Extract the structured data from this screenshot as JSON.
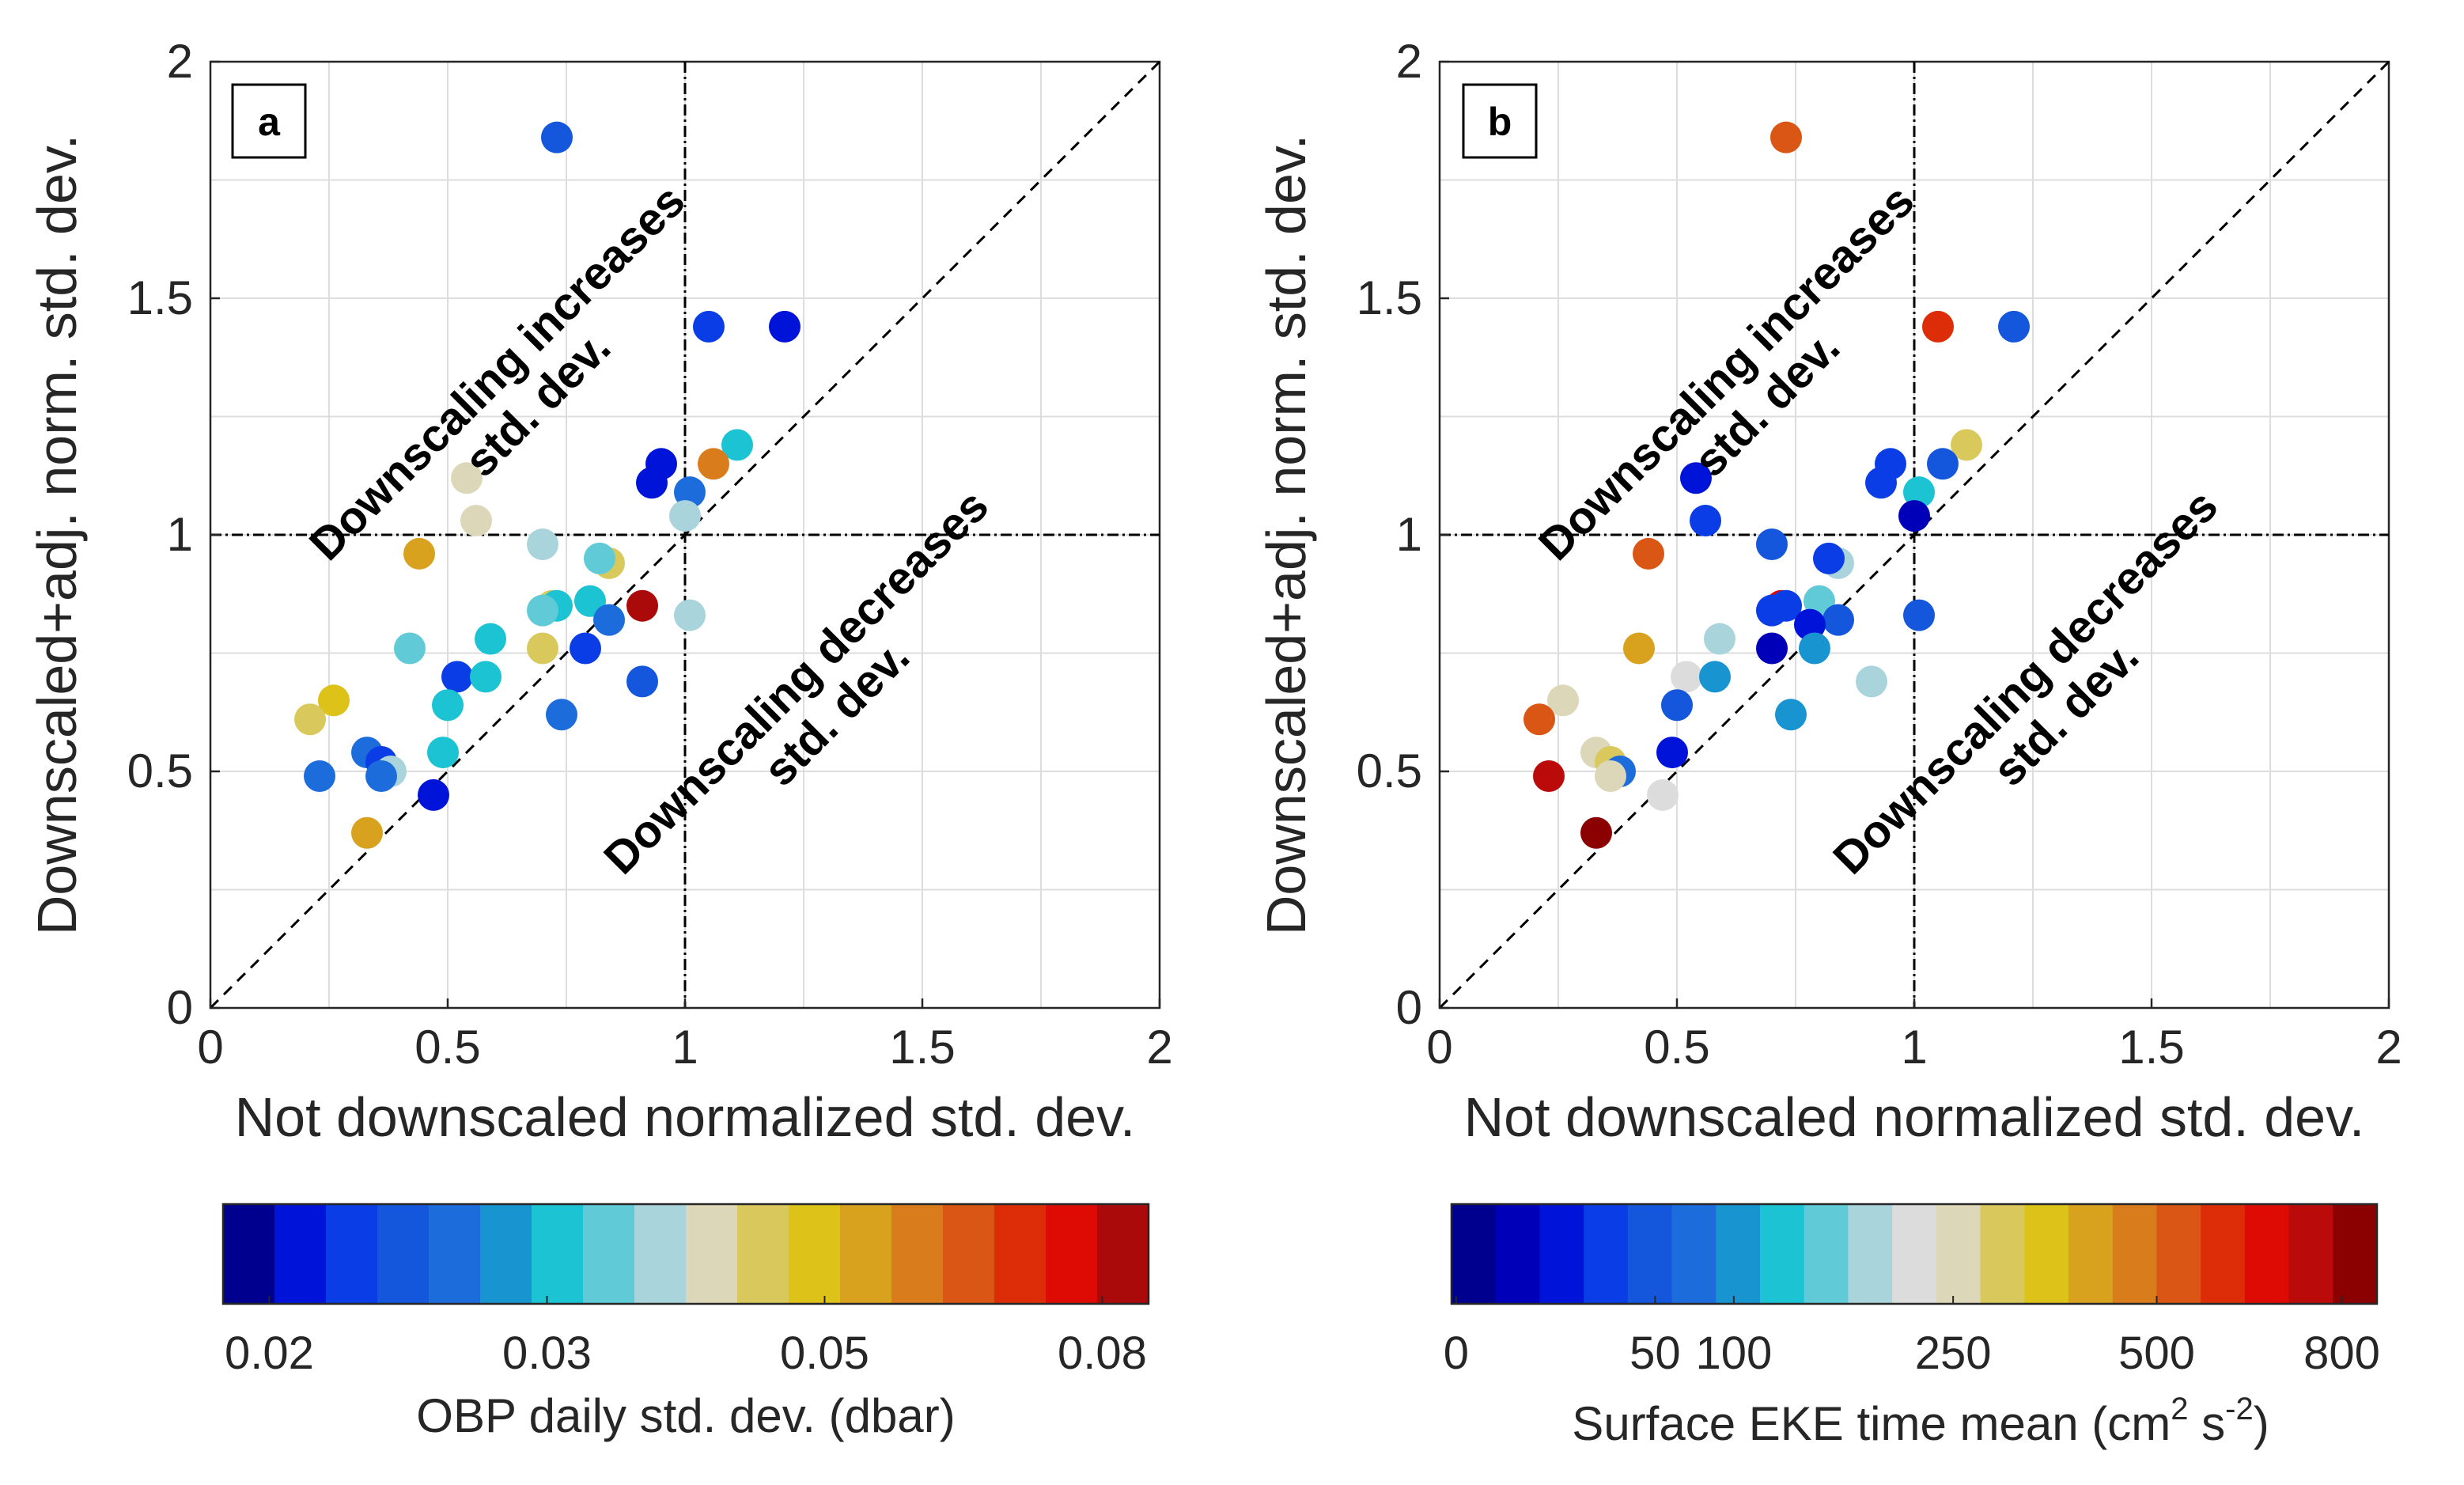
{
  "chart_data": [
    {
      "type": "scatter",
      "panel_label": "a",
      "xlabel": "Not downscaled normalized std. dev.",
      "ylabel": "Downscaled+adj. norm. std. dev.",
      "xlim": [
        0,
        2
      ],
      "ylim": [
        0,
        2
      ],
      "xticks": [
        "0",
        "0.5",
        "1",
        "1.5",
        "2"
      ],
      "yticks": [
        "0",
        "0.5",
        "1",
        "1.5",
        "2"
      ],
      "grid": true,
      "reference_lines": {
        "x": 1,
        "y": 1,
        "diagonal": "y=x"
      },
      "annotations": [
        {
          "line1": "Downscaling increases",
          "line2": "std. dev."
        },
        {
          "line1": "Downscaling decreases",
          "line2": "std. dev."
        }
      ],
      "colorbar": {
        "label": "OBP daily std. dev. (dbar)",
        "tick_labels": [
          "0.02",
          "0.03",
          "0.05",
          "0.08"
        ],
        "colors": [
          "#00008f",
          "#0014d9",
          "#0a3de6",
          "#1457dc",
          "#1c6cdc",
          "#1895d0",
          "#1cc3d3",
          "#60cad6",
          "#a9d4dc",
          "#ddd7b9",
          "#d9c95d",
          "#ddc219",
          "#d8a21e",
          "#d97c1c",
          "#da5614",
          "#dc2d08",
          "#dd0b04",
          "#aa0a0a"
        ]
      },
      "points": [
        {
          "x": 0.73,
          "y": 1.84,
          "color": "#1457dc"
        },
        {
          "x": 1.05,
          "y": 1.44,
          "color": "#0a3de6"
        },
        {
          "x": 1.21,
          "y": 1.44,
          "color": "#0014d9"
        },
        {
          "x": 1.11,
          "y": 1.19,
          "color": "#1cc3d3"
        },
        {
          "x": 0.95,
          "y": 1.15,
          "color": "#0014d9"
        },
        {
          "x": 0.93,
          "y": 1.11,
          "color": "#0014d9"
        },
        {
          "x": 1.06,
          "y": 1.15,
          "color": "#d97c1c"
        },
        {
          "x": 1.01,
          "y": 1.09,
          "color": "#1c6cdc"
        },
        {
          "x": 1.0,
          "y": 1.04,
          "color": "#a9d4dc"
        },
        {
          "x": 0.54,
          "y": 1.12,
          "color": "#ddd7b9"
        },
        {
          "x": 0.56,
          "y": 1.03,
          "color": "#ddd7b9"
        },
        {
          "x": 0.44,
          "y": 0.96,
          "color": "#d8a21e"
        },
        {
          "x": 0.7,
          "y": 0.98,
          "color": "#a9d4dc"
        },
        {
          "x": 0.84,
          "y": 0.94,
          "color": "#d9c95d"
        },
        {
          "x": 0.82,
          "y": 0.95,
          "color": "#60cad6"
        },
        {
          "x": 0.8,
          "y": 0.86,
          "color": "#1cc3d3"
        },
        {
          "x": 0.91,
          "y": 0.85,
          "color": "#aa0a0a"
        },
        {
          "x": 0.72,
          "y": 0.85,
          "color": "#d9c95d"
        },
        {
          "x": 0.73,
          "y": 0.85,
          "color": "#1cc3d3"
        },
        {
          "x": 0.7,
          "y": 0.84,
          "color": "#60cad6"
        },
        {
          "x": 0.84,
          "y": 0.82,
          "color": "#1c6cdc"
        },
        {
          "x": 1.01,
          "y": 0.83,
          "color": "#a9d4dc"
        },
        {
          "x": 0.79,
          "y": 0.76,
          "color": "#0a3de6"
        },
        {
          "x": 0.7,
          "y": 0.76,
          "color": "#d9c95d"
        },
        {
          "x": 0.59,
          "y": 0.78,
          "color": "#1cc3d3"
        },
        {
          "x": 0.42,
          "y": 0.76,
          "color": "#60cad6"
        },
        {
          "x": 0.52,
          "y": 0.7,
          "color": "#0a3de6"
        },
        {
          "x": 0.58,
          "y": 0.7,
          "color": "#1cc3d3"
        },
        {
          "x": 0.91,
          "y": 0.69,
          "color": "#1457dc"
        },
        {
          "x": 0.26,
          "y": 0.65,
          "color": "#ddc219"
        },
        {
          "x": 0.5,
          "y": 0.64,
          "color": "#1cc3d3"
        },
        {
          "x": 0.74,
          "y": 0.62,
          "color": "#1c6cdc"
        },
        {
          "x": 0.21,
          "y": 0.61,
          "color": "#d9c95d"
        },
        {
          "x": 0.49,
          "y": 0.54,
          "color": "#1cc3d3"
        },
        {
          "x": 0.33,
          "y": 0.54,
          "color": "#1c6cdc"
        },
        {
          "x": 0.36,
          "y": 0.52,
          "color": "#0a3de6"
        },
        {
          "x": 0.38,
          "y": 0.5,
          "color": "#a9d4dc"
        },
        {
          "x": 0.23,
          "y": 0.49,
          "color": "#1c6cdc"
        },
        {
          "x": 0.36,
          "y": 0.49,
          "color": "#1c6cdc"
        },
        {
          "x": 0.47,
          "y": 0.45,
          "color": "#0014d9"
        },
        {
          "x": 0.33,
          "y": 0.37,
          "color": "#d8a21e"
        }
      ]
    },
    {
      "type": "scatter",
      "panel_label": "b",
      "xlabel": "Not downscaled normalized std. dev.",
      "ylabel": "Downscaled+adj. norm. std. dev.",
      "xlim": [
        0,
        2
      ],
      "ylim": [
        0,
        2
      ],
      "xticks": [
        "0",
        "0.5",
        "1",
        "1.5",
        "2"
      ],
      "yticks": [
        "0",
        "0.5",
        "1",
        "1.5",
        "2"
      ],
      "grid": true,
      "reference_lines": {
        "x": 1,
        "y": 1,
        "diagonal": "y=x"
      },
      "annotations": [
        {
          "line1": "Downscaling increases",
          "line2": "std. dev."
        },
        {
          "line1": "Downscaling decreases",
          "line2": "std. dev."
        }
      ],
      "colorbar": {
        "label_main": "Surface EKE time mean (cm",
        "label_sup1": "2",
        "label_mid": " s",
        "label_sup2": "-2",
        "label_end": ")",
        "ticks": [
          {
            "label": "0",
            "frac": 0.005
          },
          {
            "label": "50",
            "frac": 0.22
          },
          {
            "label": "100",
            "frac": 0.305
          },
          {
            "label": "250",
            "frac": 0.542
          },
          {
            "label": "500",
            "frac": 0.762
          },
          {
            "label": "800",
            "frac": 0.962
          }
        ],
        "colors": [
          "#00008f",
          "#0000b9",
          "#0014d9",
          "#0a3de6",
          "#1457dc",
          "#1c6cdc",
          "#1895d0",
          "#1cc3d3",
          "#60cad6",
          "#a9d4dc",
          "#dcdcdc",
          "#ddd7b9",
          "#d9c95d",
          "#ddc219",
          "#d8a21e",
          "#d97c1c",
          "#da5614",
          "#dc2d08",
          "#dd0b04",
          "#bb0a0a",
          "#8b0000"
        ]
      },
      "points": [
        {
          "x": 0.73,
          "y": 1.84,
          "color": "#da5614"
        },
        {
          "x": 1.05,
          "y": 1.44,
          "color": "#dc2d08"
        },
        {
          "x": 1.21,
          "y": 1.44,
          "color": "#1457dc"
        },
        {
          "x": 1.11,
          "y": 1.19,
          "color": "#d9c95d"
        },
        {
          "x": 0.95,
          "y": 1.15,
          "color": "#0a3de6"
        },
        {
          "x": 0.93,
          "y": 1.11,
          "color": "#0a3de6"
        },
        {
          "x": 1.06,
          "y": 1.15,
          "color": "#1457dc"
        },
        {
          "x": 1.01,
          "y": 1.09,
          "color": "#1cc3d3"
        },
        {
          "x": 1.0,
          "y": 1.04,
          "color": "#0000b9"
        },
        {
          "x": 0.54,
          "y": 1.12,
          "color": "#0014d9"
        },
        {
          "x": 0.56,
          "y": 1.03,
          "color": "#0a3de6"
        },
        {
          "x": 0.44,
          "y": 0.96,
          "color": "#da5614"
        },
        {
          "x": 0.7,
          "y": 0.98,
          "color": "#1457dc"
        },
        {
          "x": 0.84,
          "y": 0.94,
          "color": "#a9d4dc"
        },
        {
          "x": 0.82,
          "y": 0.95,
          "color": "#0a3de6"
        },
        {
          "x": 0.8,
          "y": 0.86,
          "color": "#60cad6"
        },
        {
          "x": 0.72,
          "y": 0.85,
          "color": "#dd0b04"
        },
        {
          "x": 0.73,
          "y": 0.85,
          "color": "#0a3de6"
        },
        {
          "x": 0.7,
          "y": 0.84,
          "color": "#0a3de6"
        },
        {
          "x": 0.84,
          "y": 0.82,
          "color": "#1457dc"
        },
        {
          "x": 0.78,
          "y": 0.81,
          "color": "#0014d9"
        },
        {
          "x": 1.01,
          "y": 0.83,
          "color": "#1457dc"
        },
        {
          "x": 0.79,
          "y": 0.76,
          "color": "#1895d0"
        },
        {
          "x": 0.7,
          "y": 0.76,
          "color": "#0000b9"
        },
        {
          "x": 0.59,
          "y": 0.78,
          "color": "#a9d4dc"
        },
        {
          "x": 0.42,
          "y": 0.76,
          "color": "#d8a21e"
        },
        {
          "x": 0.52,
          "y": 0.7,
          "color": "#dcdcdc"
        },
        {
          "x": 0.58,
          "y": 0.7,
          "color": "#1895d0"
        },
        {
          "x": 0.91,
          "y": 0.69,
          "color": "#a9d4dc"
        },
        {
          "x": 0.26,
          "y": 0.65,
          "color": "#ddd7b9"
        },
        {
          "x": 0.5,
          "y": 0.64,
          "color": "#1457dc"
        },
        {
          "x": 0.74,
          "y": 0.62,
          "color": "#1895d0"
        },
        {
          "x": 0.21,
          "y": 0.61,
          "color": "#da5614"
        },
        {
          "x": 0.49,
          "y": 0.54,
          "color": "#0014d9"
        },
        {
          "x": 0.33,
          "y": 0.54,
          "color": "#ddd7b9"
        },
        {
          "x": 0.36,
          "y": 0.52,
          "color": "#d9c95d"
        },
        {
          "x": 0.38,
          "y": 0.5,
          "color": "#1c6cdc"
        },
        {
          "x": 0.23,
          "y": 0.49,
          "color": "#bb0a0a"
        },
        {
          "x": 0.36,
          "y": 0.49,
          "color": "#ddd7b9"
        },
        {
          "x": 0.47,
          "y": 0.45,
          "color": "#dcdcdc"
        },
        {
          "x": 0.33,
          "y": 0.37,
          "color": "#8b0000"
        }
      ]
    }
  ]
}
